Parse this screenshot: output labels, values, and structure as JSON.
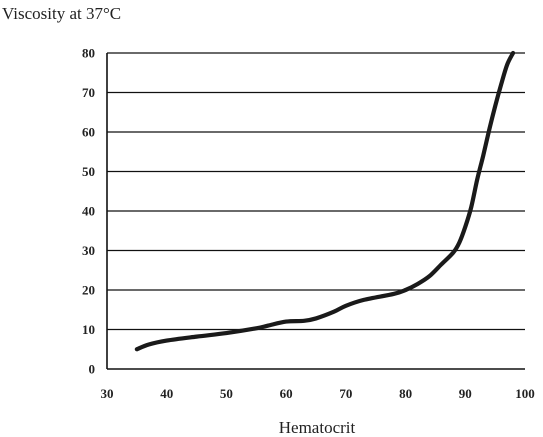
{
  "chart_data": {
    "type": "line",
    "title": "",
    "ylabel": "Viscosity at 37°C",
    "xlabel": "Hematocrit",
    "xlim": [
      30,
      100
    ],
    "ylim": [
      0,
      80
    ],
    "x_ticks": [
      30,
      40,
      50,
      60,
      70,
      80,
      90,
      100
    ],
    "y_ticks": [
      0,
      10,
      20,
      30,
      40,
      50,
      60,
      70,
      80
    ],
    "grid": "horizontal",
    "series": [
      {
        "x": [
          35,
          37,
          40,
          45,
          50,
          55,
          57,
          60,
          63,
          65,
          68,
          70,
          73,
          78,
          80,
          82,
          84,
          86,
          88,
          89,
          90,
          91,
          92,
          93,
          94,
          95,
          96,
          97,
          98
        ],
        "y": [
          5,
          6.2,
          7.2,
          8.2,
          9.1,
          10.3,
          11,
          12,
          12.2,
          12.8,
          14.5,
          16,
          17.5,
          19,
          20,
          21.5,
          23.5,
          26.5,
          29.5,
          32,
          36,
          41,
          48,
          54,
          60.5,
          66.5,
          72,
          77,
          80
        ]
      }
    ]
  }
}
